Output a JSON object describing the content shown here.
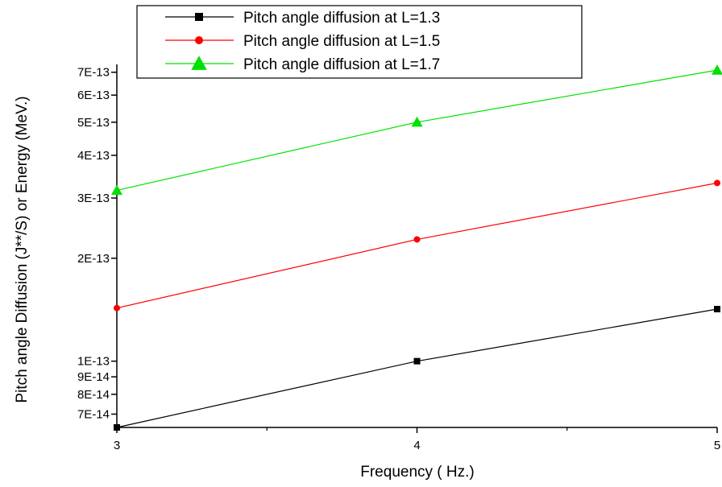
{
  "chart_data": {
    "type": "line",
    "title": "",
    "xlabel": "Frequency ( Hz.)",
    "ylabel": "Pitch angle Diffusion (J**/S) or Energy (MeV.)",
    "x": [
      3,
      4,
      5
    ],
    "xlim": [
      3,
      5
    ],
    "x_ticks": [
      {
        "value": 3,
        "label": "3"
      },
      {
        "value": 4,
        "label": "4"
      },
      {
        "value": 5,
        "label": "5"
      }
    ],
    "x_minor_ticks": [
      3.5,
      4.5
    ],
    "y_scale": "log",
    "ylim": [
      6.4e-14,
      7.3e-13
    ],
    "y_ticks": [
      {
        "value": 7e-14,
        "label": "7E-14"
      },
      {
        "value": 8e-14,
        "label": "8E-14"
      },
      {
        "value": 9e-14,
        "label": "9E-14"
      },
      {
        "value": 1e-13,
        "label": "1E-13"
      },
      {
        "value": 2e-13,
        "label": "2E-13"
      },
      {
        "value": 3e-13,
        "label": "3E-13"
      },
      {
        "value": 4e-13,
        "label": "4E-13"
      },
      {
        "value": 5e-13,
        "label": "5E-13"
      },
      {
        "value": 6e-13,
        "label": "6E-13"
      },
      {
        "value": 7e-13,
        "label": "7E-13"
      }
    ],
    "grid": false,
    "legend_position": "top",
    "series": [
      {
        "name": "Pitch angle diffusion at L=1.3",
        "color": "#000000",
        "marker": "square",
        "values": [
          6.4e-14,
          1e-13,
          1.42e-13
        ]
      },
      {
        "name": "Pitch angle diffusion at L=1.5",
        "color": "#ff0000",
        "marker": "circle",
        "values": [
          1.43e-13,
          2.27e-13,
          3.32e-13
        ]
      },
      {
        "name": "Pitch angle diffusion at L=1.7",
        "color": "#00e000",
        "marker": "triangle",
        "values": [
          3.16e-13,
          5e-13,
          7.1e-13
        ]
      }
    ]
  }
}
